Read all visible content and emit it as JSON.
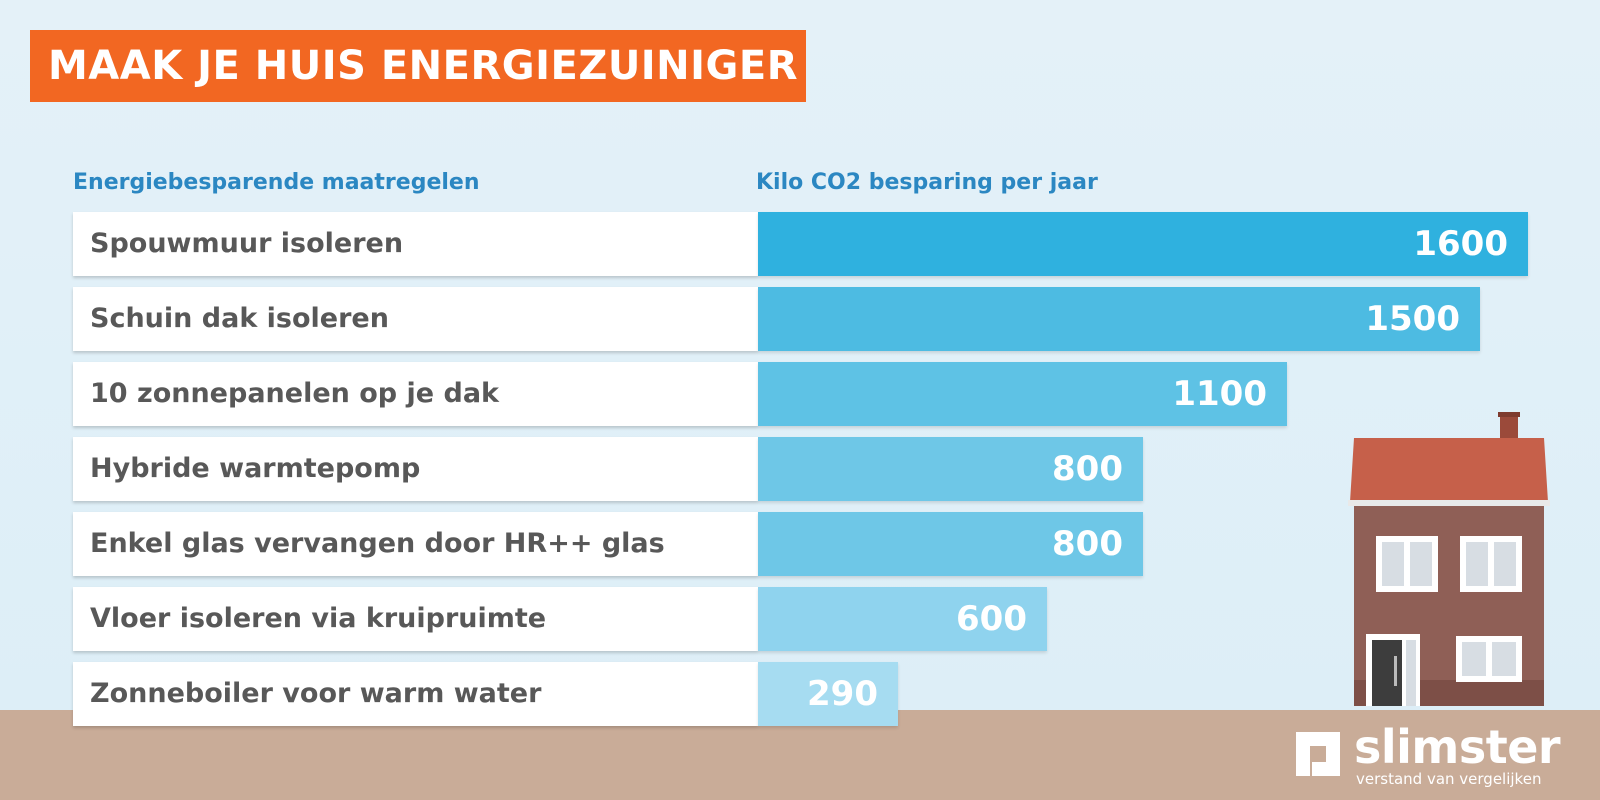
{
  "page": {
    "title": "MAAK JE HUIS ENERGIEZUINIGER"
  },
  "headers": {
    "left": "Energiebesparende maatregelen",
    "right": "Kilo CO2 besparing per jaar"
  },
  "chart_data": {
    "type": "bar",
    "orientation": "horizontal",
    "title": "MAAK JE HUIS ENERGIEZUINIGER",
    "xlabel": "Kilo CO2 besparing per jaar",
    "ylabel": "Energiebesparende maatregelen",
    "xlim": [
      0,
      1600
    ],
    "categories": [
      "Spouwmuur isoleren",
      "Schuin dak isoleren",
      "10 zonnepanelen op je dak",
      "Hybride warmtepomp",
      "Enkel glas vervangen door HR++ glas",
      "Vloer isoleren via kruipruimte",
      "Zonneboiler voor warm water"
    ],
    "values": [
      1600,
      1500,
      1100,
      800,
      800,
      600,
      290
    ],
    "value_labels": [
      "1600",
      "1500",
      "1100",
      "800",
      "800",
      "600",
      "290"
    ],
    "colors": [
      "#2fb1df",
      "#4dbbe2",
      "#5ec2e5",
      "#6ec7e7",
      "#6ec7e7",
      "#8fd3ee",
      "#a6dcf1"
    ]
  },
  "brand": {
    "name": "slimster",
    "tagline": "verstand van vergelijken"
  }
}
